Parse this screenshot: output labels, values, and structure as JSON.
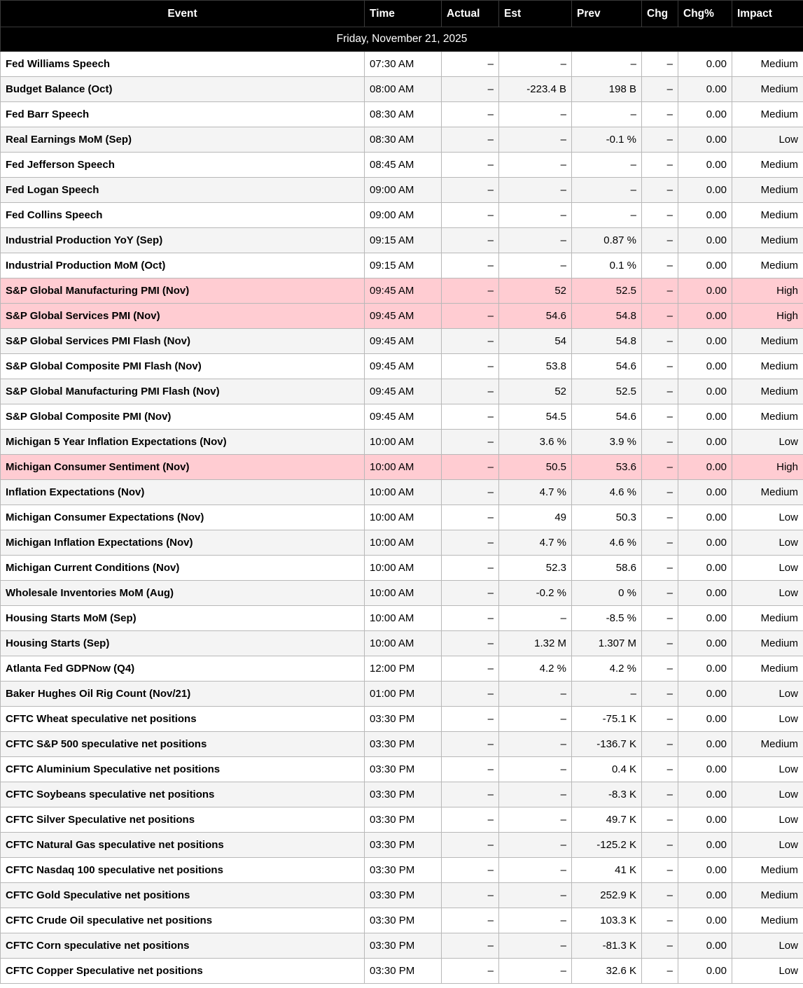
{
  "header": {
    "columns": [
      {
        "key": "event",
        "label": "Event"
      },
      {
        "key": "time",
        "label": "Time"
      },
      {
        "key": "actual",
        "label": "Actual"
      },
      {
        "key": "est",
        "label": "Est"
      },
      {
        "key": "prev",
        "label": "Prev"
      },
      {
        "key": "chg",
        "label": "Chg"
      },
      {
        "key": "chg_pct",
        "label": "Chg%"
      },
      {
        "key": "impact",
        "label": "Impact"
      }
    ]
  },
  "date_row": "Friday, November 21, 2025",
  "colors": {
    "header_bg": "#000000",
    "header_text": "#ffffff",
    "high_row_bg": "#ffccd2",
    "alt_row_bg": "#f4f4f4",
    "border": "#b8b8b8"
  },
  "rows": [
    {
      "event": "Fed Williams Speech",
      "time": "07:30 AM",
      "actual": "–",
      "est": "–",
      "prev": "–",
      "chg": "–",
      "chg_pct": "0.00",
      "impact": "Medium"
    },
    {
      "event": "Budget Balance (Oct)",
      "time": "08:00 AM",
      "actual": "–",
      "est": "-223.4 B",
      "prev": "198 B",
      "chg": "–",
      "chg_pct": "0.00",
      "impact": "Medium"
    },
    {
      "event": "Fed Barr Speech",
      "time": "08:30 AM",
      "actual": "–",
      "est": "–",
      "prev": "–",
      "chg": "–",
      "chg_pct": "0.00",
      "impact": "Medium"
    },
    {
      "event": "Real Earnings MoM (Sep)",
      "time": "08:30 AM",
      "actual": "–",
      "est": "–",
      "prev": "-0.1 %",
      "chg": "–",
      "chg_pct": "0.00",
      "impact": "Low"
    },
    {
      "event": "Fed Jefferson Speech",
      "time": "08:45 AM",
      "actual": "–",
      "est": "–",
      "prev": "–",
      "chg": "–",
      "chg_pct": "0.00",
      "impact": "Medium"
    },
    {
      "event": "Fed Logan Speech",
      "time": "09:00 AM",
      "actual": "–",
      "est": "–",
      "prev": "–",
      "chg": "–",
      "chg_pct": "0.00",
      "impact": "Medium"
    },
    {
      "event": "Fed Collins Speech",
      "time": "09:00 AM",
      "actual": "–",
      "est": "–",
      "prev": "–",
      "chg": "–",
      "chg_pct": "0.00",
      "impact": "Medium"
    },
    {
      "event": "Industrial Production YoY (Sep)",
      "time": "09:15 AM",
      "actual": "–",
      "est": "–",
      "prev": "0.87 %",
      "chg": "–",
      "chg_pct": "0.00",
      "impact": "Medium"
    },
    {
      "event": "Industrial Production MoM (Oct)",
      "time": "09:15 AM",
      "actual": "–",
      "est": "–",
      "prev": "0.1 %",
      "chg": "–",
      "chg_pct": "0.00",
      "impact": "Medium"
    },
    {
      "event": "S&P Global Manufacturing PMI (Nov)",
      "time": "09:45 AM",
      "actual": "–",
      "est": "52",
      "prev": "52.5",
      "chg": "–",
      "chg_pct": "0.00",
      "impact": "High"
    },
    {
      "event": "S&P Global Services PMI (Nov)",
      "time": "09:45 AM",
      "actual": "–",
      "est": "54.6",
      "prev": "54.8",
      "chg": "–",
      "chg_pct": "0.00",
      "impact": "High"
    },
    {
      "event": "S&P Global Services PMI Flash (Nov)",
      "time": "09:45 AM",
      "actual": "–",
      "est": "54",
      "prev": "54.8",
      "chg": "–",
      "chg_pct": "0.00",
      "impact": "Medium"
    },
    {
      "event": "S&P Global Composite PMI Flash (Nov)",
      "time": "09:45 AM",
      "actual": "–",
      "est": "53.8",
      "prev": "54.6",
      "chg": "–",
      "chg_pct": "0.00",
      "impact": "Medium"
    },
    {
      "event": "S&P Global Manufacturing PMI Flash (Nov)",
      "time": "09:45 AM",
      "actual": "–",
      "est": "52",
      "prev": "52.5",
      "chg": "–",
      "chg_pct": "0.00",
      "impact": "Medium"
    },
    {
      "event": "S&P Global Composite PMI (Nov)",
      "time": "09:45 AM",
      "actual": "–",
      "est": "54.5",
      "prev": "54.6",
      "chg": "–",
      "chg_pct": "0.00",
      "impact": "Medium"
    },
    {
      "event": "Michigan 5 Year Inflation Expectations (Nov)",
      "time": "10:00 AM",
      "actual": "–",
      "est": "3.6 %",
      "prev": "3.9 %",
      "chg": "–",
      "chg_pct": "0.00",
      "impact": "Low"
    },
    {
      "event": "Michigan Consumer Sentiment (Nov)",
      "time": "10:00 AM",
      "actual": "–",
      "est": "50.5",
      "prev": "53.6",
      "chg": "–",
      "chg_pct": "0.00",
      "impact": "High"
    },
    {
      "event": "Inflation Expectations (Nov)",
      "time": "10:00 AM",
      "actual": "–",
      "est": "4.7 %",
      "prev": "4.6 %",
      "chg": "–",
      "chg_pct": "0.00",
      "impact": "Medium"
    },
    {
      "event": "Michigan Consumer Expectations (Nov)",
      "time": "10:00 AM",
      "actual": "–",
      "est": "49",
      "prev": "50.3",
      "chg": "–",
      "chg_pct": "0.00",
      "impact": "Low"
    },
    {
      "event": "Michigan Inflation Expectations (Nov)",
      "time": "10:00 AM",
      "actual": "–",
      "est": "4.7 %",
      "prev": "4.6 %",
      "chg": "–",
      "chg_pct": "0.00",
      "impact": "Low"
    },
    {
      "event": "Michigan Current Conditions (Nov)",
      "time": "10:00 AM",
      "actual": "–",
      "est": "52.3",
      "prev": "58.6",
      "chg": "–",
      "chg_pct": "0.00",
      "impact": "Low"
    },
    {
      "event": "Wholesale Inventories MoM (Aug)",
      "time": "10:00 AM",
      "actual": "–",
      "est": "-0.2 %",
      "prev": "0 %",
      "chg": "–",
      "chg_pct": "0.00",
      "impact": "Low"
    },
    {
      "event": "Housing Starts MoM (Sep)",
      "time": "10:00 AM",
      "actual": "–",
      "est": "–",
      "prev": "-8.5 %",
      "chg": "–",
      "chg_pct": "0.00",
      "impact": "Medium"
    },
    {
      "event": "Housing Starts (Sep)",
      "time": "10:00 AM",
      "actual": "–",
      "est": "1.32 M",
      "prev": "1.307 M",
      "chg": "–",
      "chg_pct": "0.00",
      "impact": "Medium"
    },
    {
      "event": "Atlanta Fed GDPNow (Q4)",
      "time": "12:00 PM",
      "actual": "–",
      "est": "4.2 %",
      "prev": "4.2 %",
      "chg": "–",
      "chg_pct": "0.00",
      "impact": "Medium"
    },
    {
      "event": "Baker Hughes Oil Rig Count (Nov/21)",
      "time": "01:00 PM",
      "actual": "–",
      "est": "–",
      "prev": "–",
      "chg": "–",
      "chg_pct": "0.00",
      "impact": "Low"
    },
    {
      "event": "CFTC Wheat speculative net positions",
      "time": "03:30 PM",
      "actual": "–",
      "est": "–",
      "prev": "-75.1 K",
      "chg": "–",
      "chg_pct": "0.00",
      "impact": "Low"
    },
    {
      "event": "CFTC S&P 500 speculative net positions",
      "time": "03:30 PM",
      "actual": "–",
      "est": "–",
      "prev": "-136.7 K",
      "chg": "–",
      "chg_pct": "0.00",
      "impact": "Medium"
    },
    {
      "event": "CFTC Aluminium Speculative net positions",
      "time": "03:30 PM",
      "actual": "–",
      "est": "–",
      "prev": "0.4 K",
      "chg": "–",
      "chg_pct": "0.00",
      "impact": "Low"
    },
    {
      "event": "CFTC Soybeans speculative net positions",
      "time": "03:30 PM",
      "actual": "–",
      "est": "–",
      "prev": "-8.3 K",
      "chg": "–",
      "chg_pct": "0.00",
      "impact": "Low"
    },
    {
      "event": "CFTC Silver Speculative net positions",
      "time": "03:30 PM",
      "actual": "–",
      "est": "–",
      "prev": "49.7 K",
      "chg": "–",
      "chg_pct": "0.00",
      "impact": "Low"
    },
    {
      "event": "CFTC Natural Gas speculative net positions",
      "time": "03:30 PM",
      "actual": "–",
      "est": "–",
      "prev": "-125.2 K",
      "chg": "–",
      "chg_pct": "0.00",
      "impact": "Low"
    },
    {
      "event": "CFTC Nasdaq 100 speculative net positions",
      "time": "03:30 PM",
      "actual": "–",
      "est": "–",
      "prev": "41 K",
      "chg": "–",
      "chg_pct": "0.00",
      "impact": "Medium"
    },
    {
      "event": "CFTC Gold Speculative net positions",
      "time": "03:30 PM",
      "actual": "–",
      "est": "–",
      "prev": "252.9 K",
      "chg": "–",
      "chg_pct": "0.00",
      "impact": "Medium"
    },
    {
      "event": "CFTC Crude Oil speculative net positions",
      "time": "03:30 PM",
      "actual": "–",
      "est": "–",
      "prev": "103.3 K",
      "chg": "–",
      "chg_pct": "0.00",
      "impact": "Medium"
    },
    {
      "event": "CFTC Corn speculative net positions",
      "time": "03:30 PM",
      "actual": "–",
      "est": "–",
      "prev": "-81.3 K",
      "chg": "–",
      "chg_pct": "0.00",
      "impact": "Low"
    },
    {
      "event": "CFTC Copper Speculative net positions",
      "time": "03:30 PM",
      "actual": "–",
      "est": "–",
      "prev": "32.6 K",
      "chg": "–",
      "chg_pct": "0.00",
      "impact": "Low"
    }
  ]
}
